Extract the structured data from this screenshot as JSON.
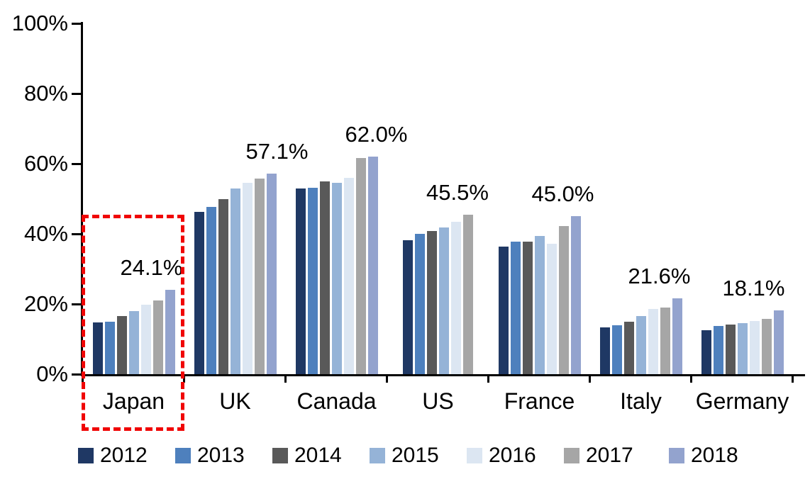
{
  "chart_data": {
    "type": "bar",
    "title": "",
    "xlabel": "",
    "ylabel": "",
    "grid": false,
    "categories": [
      "Japan",
      "UK",
      "Canada",
      "US",
      "France",
      "Italy",
      "Germany"
    ],
    "series": [
      {
        "name": "2012",
        "color": "#1F3864",
        "values": [
          14.8,
          46.2,
          52.9,
          38.2,
          36.4,
          13.3,
          12.5
        ]
      },
      {
        "name": "2013",
        "color": "#4E80BD",
        "values": [
          15.0,
          47.7,
          53.2,
          39.9,
          37.8,
          14.0,
          13.8
        ]
      },
      {
        "name": "2014",
        "color": "#595959",
        "values": [
          16.5,
          49.8,
          54.9,
          40.9,
          37.8,
          14.9,
          14.2
        ]
      },
      {
        "name": "2015",
        "color": "#95B3D7",
        "values": [
          18.0,
          53.0,
          54.5,
          41.9,
          39.3,
          16.5,
          14.6
        ]
      },
      {
        "name": "2016",
        "color": "#DCE6F2",
        "values": [
          19.8,
          54.6,
          56.0,
          43.4,
          37.2,
          18.5,
          15.2
        ]
      },
      {
        "name": "2017",
        "color": "#A6A6A6",
        "values": [
          21.0,
          55.7,
          61.6,
          45.5,
          42.2,
          18.9,
          15.7
        ]
      },
      {
        "name": "2018",
        "color": "#93A3CE",
        "values": [
          24.1,
          57.1,
          62.0,
          null,
          45.0,
          21.6,
          18.1
        ]
      }
    ],
    "data_labels": [
      "24.1%",
      "57.1%",
      "62.0%",
      "45.5%",
      "45.0%",
      "21.6%",
      "18.1%"
    ],
    "y_axis": {
      "min": 0,
      "max": 100,
      "tick_step": 20,
      "tick_labels": [
        "0%",
        "20%",
        "40%",
        "60%",
        "80%",
        "100%"
      ]
    },
    "legend": {
      "position": "bottom",
      "entries": [
        "2012",
        "2013",
        "2014",
        "2015",
        "2016",
        "2017",
        "2018"
      ]
    },
    "annotations": {
      "highlight": {
        "category": "Japan",
        "shape": "dashed-rectangle",
        "color": "#f00505"
      }
    }
  }
}
